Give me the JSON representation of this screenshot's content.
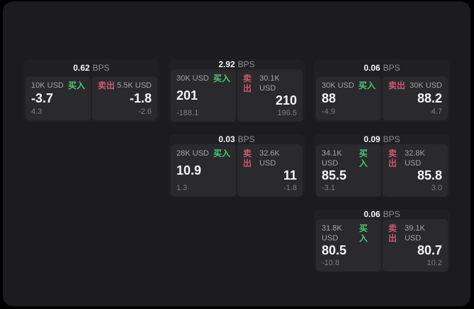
{
  "colors": {
    "page_background": "#000000",
    "panel_background": "#1c1c1e",
    "card_background": "#202022",
    "pane_background": "#2a2a2c",
    "buy_green": "#4cc778",
    "sell_red": "#d05672",
    "value_white": "#f5f5f7",
    "muted_gray": "#8e8e93"
  },
  "bps_unit": "BPS",
  "cards": [
    {
      "bps_value": "0.62",
      "buy": {
        "side_label": "买入",
        "amount": "10K USD",
        "value": "-3.7",
        "sub_value": "4.3"
      },
      "sell": {
        "side_label": "卖出",
        "amount": "5.5K USD",
        "value": "-1.8",
        "sub_value": "-2.6"
      }
    },
    {
      "bps_value": "2.92",
      "buy": {
        "side_label": "买入",
        "amount": "30K USD",
        "value": "201",
        "sub_value": "-188.1"
      },
      "sell": {
        "side_label": "卖出",
        "amount": "30.1K USD",
        "value": "210",
        "sub_value": "196.5"
      }
    },
    {
      "bps_value": "0.06",
      "buy": {
        "side_label": "买入",
        "amount": "30K USD",
        "value": "88",
        "sub_value": "-4.9"
      },
      "sell": {
        "side_label": "卖出",
        "amount": "30K USD",
        "value": "88.2",
        "sub_value": "4.7"
      }
    },
    {
      "bps_value": "0.03",
      "buy": {
        "side_label": "买入",
        "amount": "28K USD",
        "value": "10.9",
        "sub_value": "1.3"
      },
      "sell": {
        "side_label": "卖出",
        "amount": "32.6K USD",
        "value": "11",
        "sub_value": "-1.8"
      }
    },
    {
      "bps_value": "0.09",
      "buy": {
        "side_label": "买入",
        "amount": "34.1K USD",
        "value": "85.5",
        "sub_value": "-3.1"
      },
      "sell": {
        "side_label": "卖出",
        "amount": "32.8K USD",
        "value": "85.8",
        "sub_value": "3.0"
      }
    },
    {
      "bps_value": "0.06",
      "buy": {
        "side_label": "买入",
        "amount": "31.8K USD",
        "value": "80.5",
        "sub_value": "-10.8"
      },
      "sell": {
        "side_label": "卖出",
        "amount": "39.1K USD",
        "value": "80.7",
        "sub_value": "10.2"
      }
    }
  ]
}
